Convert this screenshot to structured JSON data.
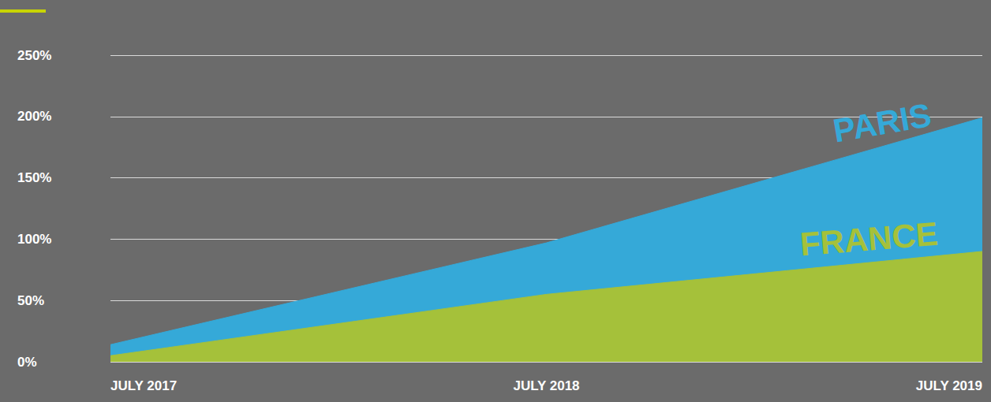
{
  "chart_data": {
    "type": "area",
    "categories": [
      "JULY 2017",
      "JULY 2018",
      "JULY 2019"
    ],
    "series": [
      {
        "name": "PARIS",
        "color": "#35a9d8",
        "values": [
          14,
          97,
          199
        ]
      },
      {
        "name": "FRANCE",
        "color": "#a5c13a",
        "values": [
          5,
          55,
          90
        ]
      }
    ],
    "ylim": [
      0,
      250
    ],
    "yticks": [
      {
        "value": 0,
        "label": "0%"
      },
      {
        "value": 50,
        "label": "50%"
      },
      {
        "value": 100,
        "label": "100%"
      },
      {
        "value": 150,
        "label": "150%"
      },
      {
        "value": 200,
        "label": "200%"
      },
      {
        "value": 250,
        "label": "250%"
      }
    ],
    "grid": true
  }
}
